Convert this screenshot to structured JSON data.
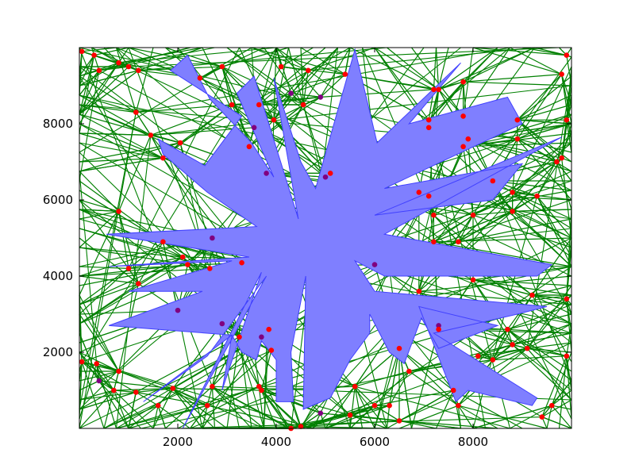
{
  "chart_data": {
    "type": "scatter",
    "title": "",
    "xlabel": "",
    "ylabel": "",
    "xlim": [
      0,
      10000
    ],
    "ylim": [
      0,
      10000
    ],
    "xticks": [
      2000,
      4000,
      6000,
      8000
    ],
    "yticks": [
      2000,
      4000,
      6000,
      8000
    ],
    "xtick_labels": [
      "2000",
      "4000",
      "6000",
      "8000"
    ],
    "ytick_labels": [
      "2000",
      "4000",
      "6000",
      "8000"
    ],
    "grid": false,
    "colors": {
      "polygon_fill": "#7f7fff",
      "polygon_edge": "#4040ff",
      "edges": "#008000",
      "points_outside": "#ff0000",
      "points_on_polygon": "#800080"
    },
    "polygon_vertices": [
      [
        9800,
        7650
      ],
      [
        6000,
        5600
      ],
      [
        8400,
        6000
      ],
      [
        9000,
        6950
      ],
      [
        6200,
        6300
      ],
      [
        9000,
        8000
      ],
      [
        8700,
        8700
      ],
      [
        6700,
        8000
      ],
      [
        7750,
        9600
      ],
      [
        6050,
        7500
      ],
      [
        5600,
        9950
      ],
      [
        4800,
        6300
      ],
      [
        4500,
        7000
      ],
      [
        3950,
        9200
      ],
      [
        4450,
        5500
      ],
      [
        3550,
        9250
      ],
      [
        3200,
        8800
      ],
      [
        3950,
        6600
      ],
      [
        3500,
        7500
      ],
      [
        2650,
        8650
      ],
      [
        2200,
        9800
      ],
      [
        1850,
        9400
      ],
      [
        3300,
        8200
      ],
      [
        2550,
        6900
      ],
      [
        1600,
        7600
      ],
      [
        1700,
        7200
      ],
      [
        2600,
        6200
      ],
      [
        3600,
        5300
      ],
      [
        550,
        5100
      ],
      [
        3450,
        4500
      ],
      [
        600,
        4250
      ],
      [
        3100,
        4400
      ],
      [
        1000,
        3600
      ],
      [
        2500,
        3600
      ],
      [
        600,
        2700
      ],
      [
        3100,
        2450
      ],
      [
        1300,
        700
      ],
      [
        2600,
        1900
      ],
      [
        3800,
        4000
      ],
      [
        2100,
        0
      ],
      [
        3700,
        4100
      ],
      [
        2900,
        1000
      ],
      [
        3100,
        2450
      ],
      [
        3300,
        2000
      ],
      [
        3600,
        1800
      ],
      [
        3700,
        2300
      ],
      [
        4000,
        1800
      ],
      [
        4000,
        700
      ],
      [
        4350,
        700
      ],
      [
        4300,
        2000
      ],
      [
        4600,
        4000
      ],
      [
        4550,
        500
      ],
      [
        5100,
        800
      ],
      [
        5500,
        1800
      ],
      [
        5900,
        2500
      ],
      [
        5900,
        3000
      ],
      [
        6300,
        2000
      ],
      [
        6600,
        1700
      ],
      [
        6950,
        2900
      ],
      [
        7300,
        2100
      ],
      [
        8500,
        2700
      ],
      [
        6900,
        3200
      ],
      [
        7650,
        700
      ],
      [
        7900,
        1000
      ],
      [
        9200,
        600
      ],
      [
        9300,
        800
      ],
      [
        7200,
        2500
      ],
      [
        8900,
        3000
      ],
      [
        9500,
        3200
      ],
      [
        6000,
        3600
      ],
      [
        5600,
        4400
      ],
      [
        6200,
        4000
      ],
      [
        9300,
        4000
      ],
      [
        9600,
        4300
      ],
      [
        6200,
        5100
      ]
    ],
    "points": [
      {
        "x": 50,
        "y": 1750,
        "on_polygon": false
      },
      {
        "x": 400,
        "y": 1250,
        "on_polygon": true
      },
      {
        "x": 350,
        "y": 1700,
        "on_polygon": false
      },
      {
        "x": 800,
        "y": 1500,
        "on_polygon": false
      },
      {
        "x": 700,
        "y": 1000,
        "on_polygon": false
      },
      {
        "x": 1150,
        "y": 950,
        "on_polygon": false
      },
      {
        "x": 1600,
        "y": 600,
        "on_polygon": false
      },
      {
        "x": 1900,
        "y": 1050,
        "on_polygon": false
      },
      {
        "x": 2000,
        "y": 3100,
        "on_polygon": true
      },
      {
        "x": 1200,
        "y": 3800,
        "on_polygon": false
      },
      {
        "x": 1000,
        "y": 4200,
        "on_polygon": false
      },
      {
        "x": 1700,
        "y": 4900,
        "on_polygon": false
      },
      {
        "x": 2100,
        "y": 4500,
        "on_polygon": false
      },
      {
        "x": 2200,
        "y": 4300,
        "on_polygon": false
      },
      {
        "x": 2700,
        "y": 5000,
        "on_polygon": true
      },
      {
        "x": 2650,
        "y": 4200,
        "on_polygon": false
      },
      {
        "x": 3300,
        "y": 4350,
        "on_polygon": false
      },
      {
        "x": 2900,
        "y": 2750,
        "on_polygon": true
      },
      {
        "x": 3250,
        "y": 2400,
        "on_polygon": false
      },
      {
        "x": 3700,
        "y": 2400,
        "on_polygon": true
      },
      {
        "x": 3850,
        "y": 2600,
        "on_polygon": false
      },
      {
        "x": 3900,
        "y": 2050,
        "on_polygon": false
      },
      {
        "x": 3700,
        "y": 1000,
        "on_polygon": false
      },
      {
        "x": 3650,
        "y": 1100,
        "on_polygon": false
      },
      {
        "x": 2600,
        "y": 600,
        "on_polygon": false
      },
      {
        "x": 2700,
        "y": 1100,
        "on_polygon": false
      },
      {
        "x": 4300,
        "y": 0,
        "on_polygon": false
      },
      {
        "x": 4500,
        "y": 50,
        "on_polygon": false
      },
      {
        "x": 4900,
        "y": 400,
        "on_polygon": true
      },
      {
        "x": 5600,
        "y": 1100,
        "on_polygon": false
      },
      {
        "x": 5500,
        "y": 350,
        "on_polygon": false
      },
      {
        "x": 6000,
        "y": 600,
        "on_polygon": false
      },
      {
        "x": 6300,
        "y": 600,
        "on_polygon": false
      },
      {
        "x": 6500,
        "y": 200,
        "on_polygon": false
      },
      {
        "x": 6500,
        "y": 2100,
        "on_polygon": false
      },
      {
        "x": 6700,
        "y": 1500,
        "on_polygon": false
      },
      {
        "x": 6900,
        "y": 3600,
        "on_polygon": false
      },
      {
        "x": 7300,
        "y": 2700,
        "on_polygon": true
      },
      {
        "x": 7300,
        "y": 2600,
        "on_polygon": false
      },
      {
        "x": 7600,
        "y": 1000,
        "on_polygon": false
      },
      {
        "x": 7700,
        "y": 600,
        "on_polygon": false
      },
      {
        "x": 8100,
        "y": 1900,
        "on_polygon": false
      },
      {
        "x": 8400,
        "y": 1800,
        "on_polygon": false
      },
      {
        "x": 8700,
        "y": 2600,
        "on_polygon": false
      },
      {
        "x": 8800,
        "y": 2200,
        "on_polygon": false
      },
      {
        "x": 9100,
        "y": 2100,
        "on_polygon": false
      },
      {
        "x": 9400,
        "y": 300,
        "on_polygon": false
      },
      {
        "x": 9600,
        "y": 600,
        "on_polygon": false
      },
      {
        "x": 9900,
        "y": 1900,
        "on_polygon": false
      },
      {
        "x": 9900,
        "y": 3400,
        "on_polygon": false
      },
      {
        "x": 9200,
        "y": 3500,
        "on_polygon": false
      },
      {
        "x": 8000,
        "y": 3900,
        "on_polygon": false
      },
      {
        "x": 6000,
        "y": 4300,
        "on_polygon": true
      },
      {
        "x": 7200,
        "y": 4900,
        "on_polygon": false
      },
      {
        "x": 7700,
        "y": 4900,
        "on_polygon": false
      },
      {
        "x": 7200,
        "y": 5600,
        "on_polygon": false
      },
      {
        "x": 8000,
        "y": 5600,
        "on_polygon": false
      },
      {
        "x": 8800,
        "y": 5700,
        "on_polygon": false
      },
      {
        "x": 9300,
        "y": 6100,
        "on_polygon": false
      },
      {
        "x": 8800,
        "y": 6200,
        "on_polygon": false
      },
      {
        "x": 6900,
        "y": 6200,
        "on_polygon": false
      },
      {
        "x": 7100,
        "y": 6100,
        "on_polygon": false
      },
      {
        "x": 8400,
        "y": 6500,
        "on_polygon": false
      },
      {
        "x": 9700,
        "y": 7000,
        "on_polygon": false
      },
      {
        "x": 9800,
        "y": 7100,
        "on_polygon": false
      },
      {
        "x": 7800,
        "y": 7400,
        "on_polygon": false
      },
      {
        "x": 7900,
        "y": 7600,
        "on_polygon": false
      },
      {
        "x": 8900,
        "y": 7600,
        "on_polygon": false
      },
      {
        "x": 8900,
        "y": 8100,
        "on_polygon": false
      },
      {
        "x": 7100,
        "y": 7900,
        "on_polygon": false
      },
      {
        "x": 7100,
        "y": 8100,
        "on_polygon": false
      },
      {
        "x": 7800,
        "y": 8200,
        "on_polygon": false
      },
      {
        "x": 7200,
        "y": 8900,
        "on_polygon": false
      },
      {
        "x": 7300,
        "y": 8900,
        "on_polygon": false
      },
      {
        "x": 7800,
        "y": 9100,
        "on_polygon": false
      },
      {
        "x": 9800,
        "y": 9300,
        "on_polygon": false
      },
      {
        "x": 9900,
        "y": 9800,
        "on_polygon": false
      },
      {
        "x": 9900,
        "y": 8100,
        "on_polygon": false
      },
      {
        "x": 5000,
        "y": 6600,
        "on_polygon": true
      },
      {
        "x": 5100,
        "y": 6700,
        "on_polygon": false
      },
      {
        "x": 5400,
        "y": 9300,
        "on_polygon": false
      },
      {
        "x": 4900,
        "y": 8700,
        "on_polygon": true
      },
      {
        "x": 4550,
        "y": 8500,
        "on_polygon": false
      },
      {
        "x": 4300,
        "y": 8800,
        "on_polygon": true
      },
      {
        "x": 4650,
        "y": 9400,
        "on_polygon": false
      },
      {
        "x": 4100,
        "y": 9500,
        "on_polygon": false
      },
      {
        "x": 3950,
        "y": 8100,
        "on_polygon": false
      },
      {
        "x": 3650,
        "y": 8500,
        "on_polygon": false
      },
      {
        "x": 3800,
        "y": 6700,
        "on_polygon": true
      },
      {
        "x": 3450,
        "y": 7400,
        "on_polygon": false
      },
      {
        "x": 3550,
        "y": 7900,
        "on_polygon": true
      },
      {
        "x": 3100,
        "y": 8500,
        "on_polygon": false
      },
      {
        "x": 2900,
        "y": 9500,
        "on_polygon": false
      },
      {
        "x": 2450,
        "y": 9200,
        "on_polygon": false
      },
      {
        "x": 2050,
        "y": 7500,
        "on_polygon": false
      },
      {
        "x": 1700,
        "y": 7100,
        "on_polygon": false
      },
      {
        "x": 1450,
        "y": 7700,
        "on_polygon": false
      },
      {
        "x": 1150,
        "y": 8300,
        "on_polygon": false
      },
      {
        "x": 1200,
        "y": 9400,
        "on_polygon": false
      },
      {
        "x": 1000,
        "y": 9500,
        "on_polygon": false
      },
      {
        "x": 800,
        "y": 9600,
        "on_polygon": false
      },
      {
        "x": 400,
        "y": 9400,
        "on_polygon": false
      },
      {
        "x": 300,
        "y": 9800,
        "on_polygon": false
      },
      {
        "x": 800,
        "y": 5700,
        "on_polygon": false
      },
      {
        "x": 50,
        "y": 9900,
        "on_polygon": false
      }
    ]
  }
}
